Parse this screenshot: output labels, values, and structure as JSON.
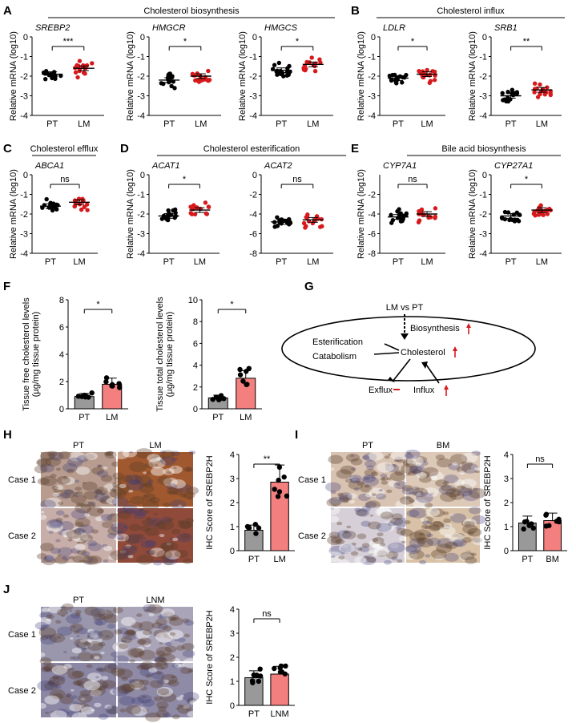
{
  "figure": {
    "panels": [
      {
        "letter": "A",
        "group_title": "Cholesterol biosynthesis"
      },
      {
        "letter": "B",
        "group_title": "Cholesterol influx"
      },
      {
        "letter": "C",
        "group_title": "Cholesterol efflux"
      },
      {
        "letter": "D",
        "group_title": "Cholesterol esterification"
      },
      {
        "letter": "E",
        "group_title": "Bile acid biosynthesis"
      },
      {
        "letter": "F",
        "group_title": ""
      },
      {
        "letter": "G",
        "group_title": ""
      },
      {
        "letter": "H",
        "group_title": ""
      },
      {
        "letter": "I",
        "group_title": ""
      },
      {
        "letter": "J",
        "group_title": ""
      }
    ]
  },
  "mrna_ylabel": "Relative mRNA (log10)",
  "ihc_ylabel": "IHC Score of SREBP2H",
  "cases": [
    "Case 1",
    "Case 2"
  ],
  "diagram": {
    "header": "LM vs PT",
    "nodes": [
      "Biosynthesis",
      "Esterification",
      "Catabolism",
      "Cholesterol",
      "Exflux",
      "Influx"
    ],
    "colors": {
      "up_arrow": "#d7191c",
      "ellipse": "#000000"
    }
  },
  "micrograph_headers": {
    "H": [
      "PT",
      "LM"
    ],
    "I": [
      "PT",
      "BM"
    ],
    "J": [
      "PT",
      "LNM"
    ]
  },
  "chart_data": [
    {
      "type": "scatter",
      "panel": "A",
      "gene": "SREBP2",
      "categories": [
        "PT",
        "LM"
      ],
      "ylim": [
        -4,
        0
      ],
      "yticks": [
        0,
        -1,
        -2,
        -3,
        -4
      ],
      "ylabel": "Relative mRNA (log10)",
      "means": [
        -1.9,
        -1.6
      ],
      "significance": "***"
    },
    {
      "type": "scatter",
      "panel": "A",
      "gene": "HMGCR",
      "categories": [
        "PT",
        "LM"
      ],
      "ylim": [
        -4,
        0
      ],
      "yticks": [
        0,
        -1,
        -2,
        -3,
        -4
      ],
      "ylabel": "Relative mRNA (log10)",
      "means": [
        -2.2,
        -2.0
      ],
      "significance": "*"
    },
    {
      "type": "scatter",
      "panel": "A",
      "gene": "HMGCS",
      "categories": [
        "PT",
        "LM"
      ],
      "ylim": [
        -4,
        0
      ],
      "yticks": [
        0,
        -1,
        -2,
        -3,
        -4
      ],
      "ylabel": "Relative mRNA (log10)",
      "means": [
        -1.7,
        -1.4
      ],
      "significance": "*"
    },
    {
      "type": "scatter",
      "panel": "B",
      "gene": "LDLR",
      "categories": [
        "PT",
        "LM"
      ],
      "ylim": [
        -4,
        0
      ],
      "yticks": [
        0,
        -1,
        -2,
        -3,
        -4
      ],
      "ylabel": "Relative mRNA (log10)",
      "means": [
        -2.1,
        -1.9
      ],
      "significance": "*"
    },
    {
      "type": "scatter",
      "panel": "B",
      "gene": "SRB1",
      "categories": [
        "PT",
        "LM"
      ],
      "ylim": [
        -4,
        0
      ],
      "yticks": [
        0,
        -1,
        -2,
        -3,
        -4
      ],
      "ylabel": "Relative mRNA (log10)",
      "means": [
        -3.0,
        -2.7
      ],
      "significance": "**"
    },
    {
      "type": "scatter",
      "panel": "C",
      "gene": "ABCA1",
      "categories": [
        "PT",
        "LM"
      ],
      "ylim": [
        -4,
        0
      ],
      "yticks": [
        0,
        -1,
        -2,
        -3,
        -4
      ],
      "ylabel": "Relative mRNA (log10)",
      "means": [
        -1.6,
        -1.4
      ],
      "significance": "ns"
    },
    {
      "type": "scatter",
      "panel": "D",
      "gene": "ACAT1",
      "categories": [
        "PT",
        "LM"
      ],
      "ylim": [
        -4,
        0
      ],
      "yticks": [
        0,
        -1,
        -2,
        -3,
        -4
      ],
      "ylabel": "Relative mRNA (log10)",
      "means": [
        -2.1,
        -1.8
      ],
      "significance": "*"
    },
    {
      "type": "scatter",
      "panel": "D",
      "gene": "ACAT2",
      "categories": [
        "PT",
        "LM"
      ],
      "ylim": [
        -8,
        0
      ],
      "yticks": [
        0,
        -2,
        -4,
        -6,
        -8
      ],
      "ylabel": "",
      "means": [
        -4.8,
        -4.6
      ],
      "significance": "ns"
    },
    {
      "type": "scatter",
      "panel": "E",
      "gene": "CYP7A1",
      "categories": [
        "PT",
        "LM"
      ],
      "ylim": [
        -8,
        0
      ],
      "yticks": [
        -2,
        -4,
        -6,
        -8
      ],
      "ylabel": "Relative mRNA (log10)",
      "means": [
        -4.3,
        -4.0
      ],
      "significance": "ns"
    },
    {
      "type": "scatter",
      "panel": "E",
      "gene": "CYP27A1",
      "categories": [
        "PT",
        "LM"
      ],
      "ylim": [
        -4,
        0
      ],
      "yticks": [
        0,
        -1,
        -2,
        -3,
        -4
      ],
      "ylabel": "Relative mRNA (log10)",
      "means": [
        -2.1,
        -1.8
      ],
      "significance": "*"
    },
    {
      "type": "bar",
      "panel": "F",
      "categories": [
        "PT",
        "LM"
      ],
      "values": [
        0.9,
        1.8
      ],
      "ylim": [
        0,
        8
      ],
      "yticks": [
        0,
        2,
        4,
        6,
        8
      ],
      "ylabel": "Tissue free cholesterol levels (µg/mg tissue protein)",
      "significance": "*",
      "colors": [
        "#999999",
        "#f47f7f"
      ]
    },
    {
      "type": "bar",
      "panel": "F",
      "categories": [
        "PT",
        "LM"
      ],
      "values": [
        1.0,
        2.8
      ],
      "ylim": [
        0,
        10
      ],
      "yticks": [
        0,
        2,
        4,
        6,
        8,
        10
      ],
      "ylabel": "Tissue total cholesterol levels (µg/mg tissue protein)",
      "significance": "*",
      "colors": [
        "#999999",
        "#f47f7f"
      ]
    },
    {
      "type": "bar",
      "panel": "H",
      "categories": [
        "PT",
        "LM"
      ],
      "values": [
        0.85,
        2.85
      ],
      "ylim": [
        0,
        4
      ],
      "yticks": [
        0,
        1,
        2,
        3,
        4
      ],
      "ylabel": "IHC Score of SREBP2H",
      "significance": "**",
      "colors": [
        "#999999",
        "#f47f7f"
      ]
    },
    {
      "type": "bar",
      "panel": "I",
      "categories": [
        "PT",
        "BM"
      ],
      "values": [
        1.15,
        1.25
      ],
      "ylim": [
        0,
        4
      ],
      "yticks": [
        0,
        1,
        2,
        3,
        4
      ],
      "ylabel": "IHC Score of SREBP2H",
      "significance": "ns",
      "colors": [
        "#999999",
        "#f47f7f"
      ]
    },
    {
      "type": "bar",
      "panel": "J",
      "categories": [
        "PT",
        "LNM"
      ],
      "values": [
        1.15,
        1.3
      ],
      "ylim": [
        0,
        4
      ],
      "yticks": [
        0,
        1,
        2,
        3,
        4
      ],
      "ylabel": "IHC Score of SREBP2H",
      "significance": "ns",
      "colors": [
        "#999999",
        "#f47f7f"
      ]
    }
  ]
}
